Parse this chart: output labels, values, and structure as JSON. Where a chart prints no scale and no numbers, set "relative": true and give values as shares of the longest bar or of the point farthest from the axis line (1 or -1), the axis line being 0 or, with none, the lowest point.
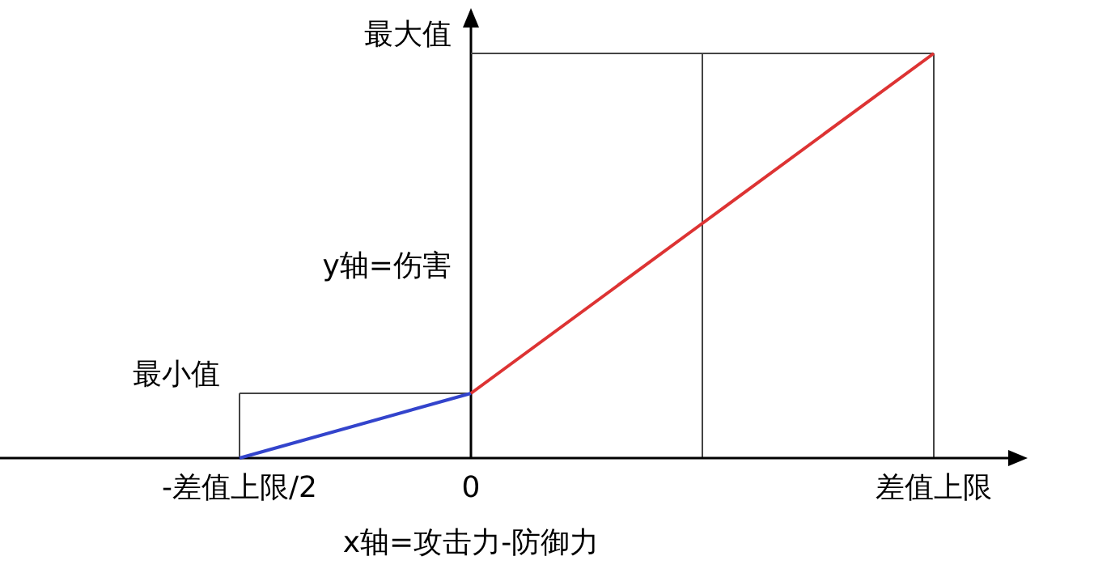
{
  "chart_data": {
    "type": "line",
    "xlabel": "x轴=攻击力-防御力",
    "ylabel": "y轴=伤害",
    "relative": true,
    "categories": [
      "-差值上限/2",
      "0",
      null,
      "差值上限"
    ],
    "series": [
      {
        "color": "#3344cc",
        "values": [
          0,
          0.16,
          null,
          null
        ]
      },
      {
        "color": "#dd3333",
        "values": [
          null,
          0.16,
          0.58,
          1
        ]
      }
    ],
    "ref_lines": [
      {
        "axis": "x",
        "value": "0",
        "color": "#000000"
      },
      {
        "axis": "y",
        "value": 0.16,
        "label": "最小值",
        "color": "#444444"
      },
      {
        "axis": "y",
        "value": 1,
        "label": "最大值",
        "color": "#444444"
      }
    ],
    "grid": "x"
  }
}
